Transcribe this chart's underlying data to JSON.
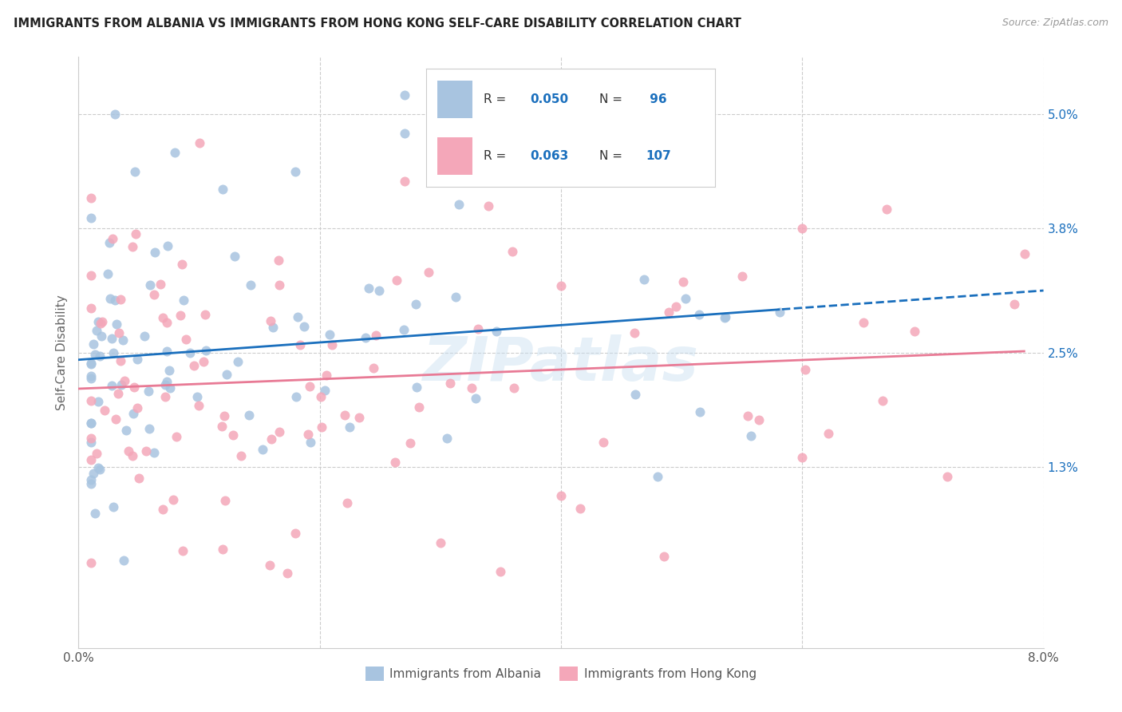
{
  "title": "IMMIGRANTS FROM ALBANIA VS IMMIGRANTS FROM HONG KONG SELF-CARE DISABILITY CORRELATION CHART",
  "source": "Source: ZipAtlas.com",
  "ylabel": "Self-Care Disability",
  "xlim": [
    0.0,
    0.08
  ],
  "ylim": [
    -0.006,
    0.056
  ],
  "albania_color": "#a8c4e0",
  "hongkong_color": "#f4a7b9",
  "albania_line_color": "#1a6fbd",
  "hongkong_line_color": "#e87a95",
  "albania_R": 0.05,
  "albania_N": 96,
  "hongkong_R": 0.063,
  "hongkong_N": 107,
  "watermark": "ZIPatlas",
  "ytick_vals": [
    0.013,
    0.025,
    0.038,
    0.05
  ],
  "ytick_labels": [
    "1.3%",
    "2.5%",
    "3.8%",
    "5.0%"
  ],
  "legend_R_color": "#1a6fbd",
  "legend_text_color": "#555555",
  "grid_color": "#cccccc"
}
